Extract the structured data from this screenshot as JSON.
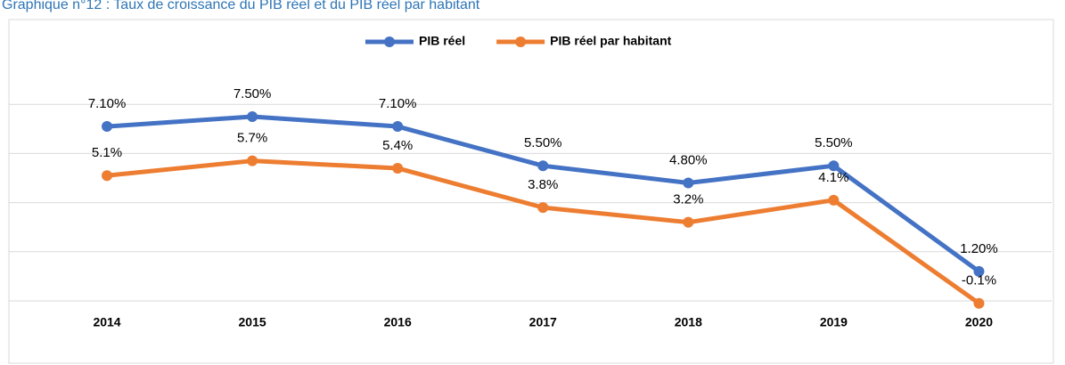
{
  "chart_data": {
    "type": "line",
    "title": "Graphique n°12 : Taux de croissance du PIB réel et du PIB réel par habitant",
    "categories": [
      "2014",
      "2015",
      "2016",
      "2017",
      "2018",
      "2019",
      "2020"
    ],
    "series": [
      {
        "name": "PIB réel",
        "color": "#4472c4",
        "values": [
          7.1,
          7.5,
          7.1,
          5.5,
          4.8,
          5.5,
          1.2
        ],
        "value_labels": [
          "7.10%",
          "7.50%",
          "7.10%",
          "5.50%",
          "4.80%",
          "5.50%",
          "1.20%"
        ]
      },
      {
        "name": "PIB réel par habitant",
        "color": "#ed7d31",
        "values": [
          5.1,
          5.7,
          5.4,
          3.8,
          3.2,
          4.1,
          -0.1
        ],
        "value_labels": [
          "5.1%",
          "5.7%",
          "5.4%",
          "3.8%",
          "3.2%",
          "4.1%",
          "-0.1%"
        ]
      }
    ],
    "ylim": [
      -1,
      9
    ],
    "yticks": [
      0,
      2,
      4,
      6,
      8
    ],
    "grid": true,
    "legend": "top"
  }
}
